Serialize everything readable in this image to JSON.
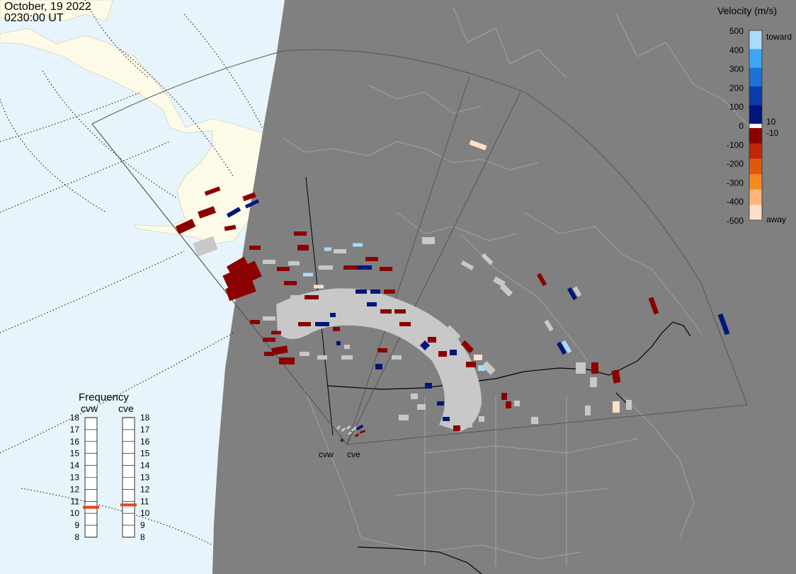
{
  "header": {
    "date": "October, 19 2022",
    "time": "0230:00 UT"
  },
  "colorbar": {
    "title": "Velocity (m/s)",
    "ticks": [
      "500",
      "400",
      "300",
      "200",
      "100",
      "0",
      "-100",
      "-200",
      "-300",
      "-400",
      "-500"
    ],
    "inner_ticks": [
      "10",
      "-10"
    ],
    "toward_label": "toward",
    "away_label": "away",
    "colors": [
      "#fde0c8",
      "#fbb57a",
      "#f58a1f",
      "#e0580c",
      "#c0260b",
      "#8b0000",
      "#ffffff",
      "#00167a",
      "#0b3da8",
      "#1e6fd6",
      "#3ea6f2",
      "#a8dcfa"
    ]
  },
  "frequency": {
    "title": "Frequency",
    "radars": [
      "cvw",
      "cve"
    ],
    "scale": [
      "18",
      "17",
      "16",
      "15",
      "14",
      "13",
      "12",
      "11",
      "10",
      "9",
      "8"
    ],
    "cvw_mhz": 10.5,
    "cve_mhz": 10.7,
    "marker_color": "#e8451c"
  },
  "radar_sites": [
    "cvw",
    "cve"
  ],
  "map_colors": {
    "ocean": "#e8f4fc",
    "land_lit": "#fdfbe8",
    "night": "#808080",
    "ground_scatter": "#c8c8c8",
    "boundary": "#999999"
  }
}
